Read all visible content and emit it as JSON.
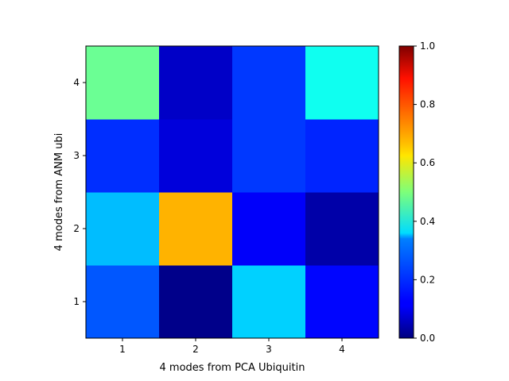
{
  "chart_data": {
    "type": "heatmap",
    "title": "",
    "xlabel": "4 modes from PCA Ubiquitin",
    "ylabel": "4 modes from ANM ubi",
    "x_categories": [
      "1",
      "2",
      "3",
      "4"
    ],
    "y_categories": [
      "1",
      "2",
      "3",
      "4"
    ],
    "values": [
      [
        0.21,
        0.01,
        0.33,
        0.13
      ],
      [
        0.31,
        0.7,
        0.12,
        0.04
      ],
      [
        0.17,
        0.09,
        0.18,
        0.16
      ],
      [
        0.48,
        0.07,
        0.18,
        0.39
      ]
    ],
    "colormap": "jet",
    "vmin": 0.0,
    "vmax": 1.0,
    "colorbar_ticks": [
      "0.0",
      "0.2",
      "0.4",
      "0.6",
      "0.8",
      "1.0"
    ],
    "grid": false,
    "legend": "colorbar-right"
  }
}
